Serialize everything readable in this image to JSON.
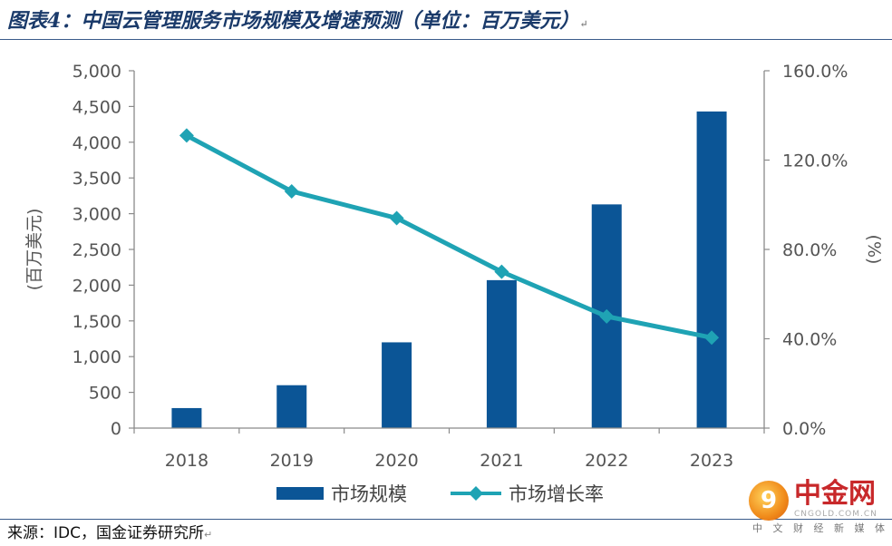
{
  "title": "图表4：中国云管理服务市场规模及增速预测（单位：百万美元）",
  "source": "来源：IDC，国金证券研究所",
  "paragraph_mark": "↵",
  "logo": {
    "name": "中金网",
    "domain": "CNGOLD.COM.CN",
    "tagline": "中 文 财 经 新 媒 体"
  },
  "chart_data": {
    "type": "bar+line",
    "categories": [
      "2018",
      "2019",
      "2020",
      "2021",
      "2022",
      "2023"
    ],
    "series": [
      {
        "name": "市场规模",
        "type": "bar",
        "axis": "left",
        "color": "#0b5596",
        "values": [
          280,
          600,
          1200,
          2070,
          3130,
          4430
        ]
      },
      {
        "name": "市场增长率",
        "type": "line",
        "axis": "right",
        "color": "#1fa3b4",
        "values": [
          131.0,
          106.0,
          94.0,
          70.0,
          50.0,
          40.5
        ]
      }
    ],
    "y_left": {
      "label": "(百万美元)",
      "min": 0,
      "max": 5000,
      "ticks": [
        "0",
        "500",
        "1,000",
        "1,500",
        "2,000",
        "2,500",
        "3,000",
        "3,500",
        "4,000",
        "4,500",
        "5,000"
      ]
    },
    "y_right": {
      "label": "(%)",
      "min": 0,
      "max": 160,
      "ticks": [
        "0.0%",
        "40.0%",
        "80.0%",
        "120.0%",
        "160.0%"
      ]
    },
    "grid": false,
    "legend": "bottom"
  }
}
